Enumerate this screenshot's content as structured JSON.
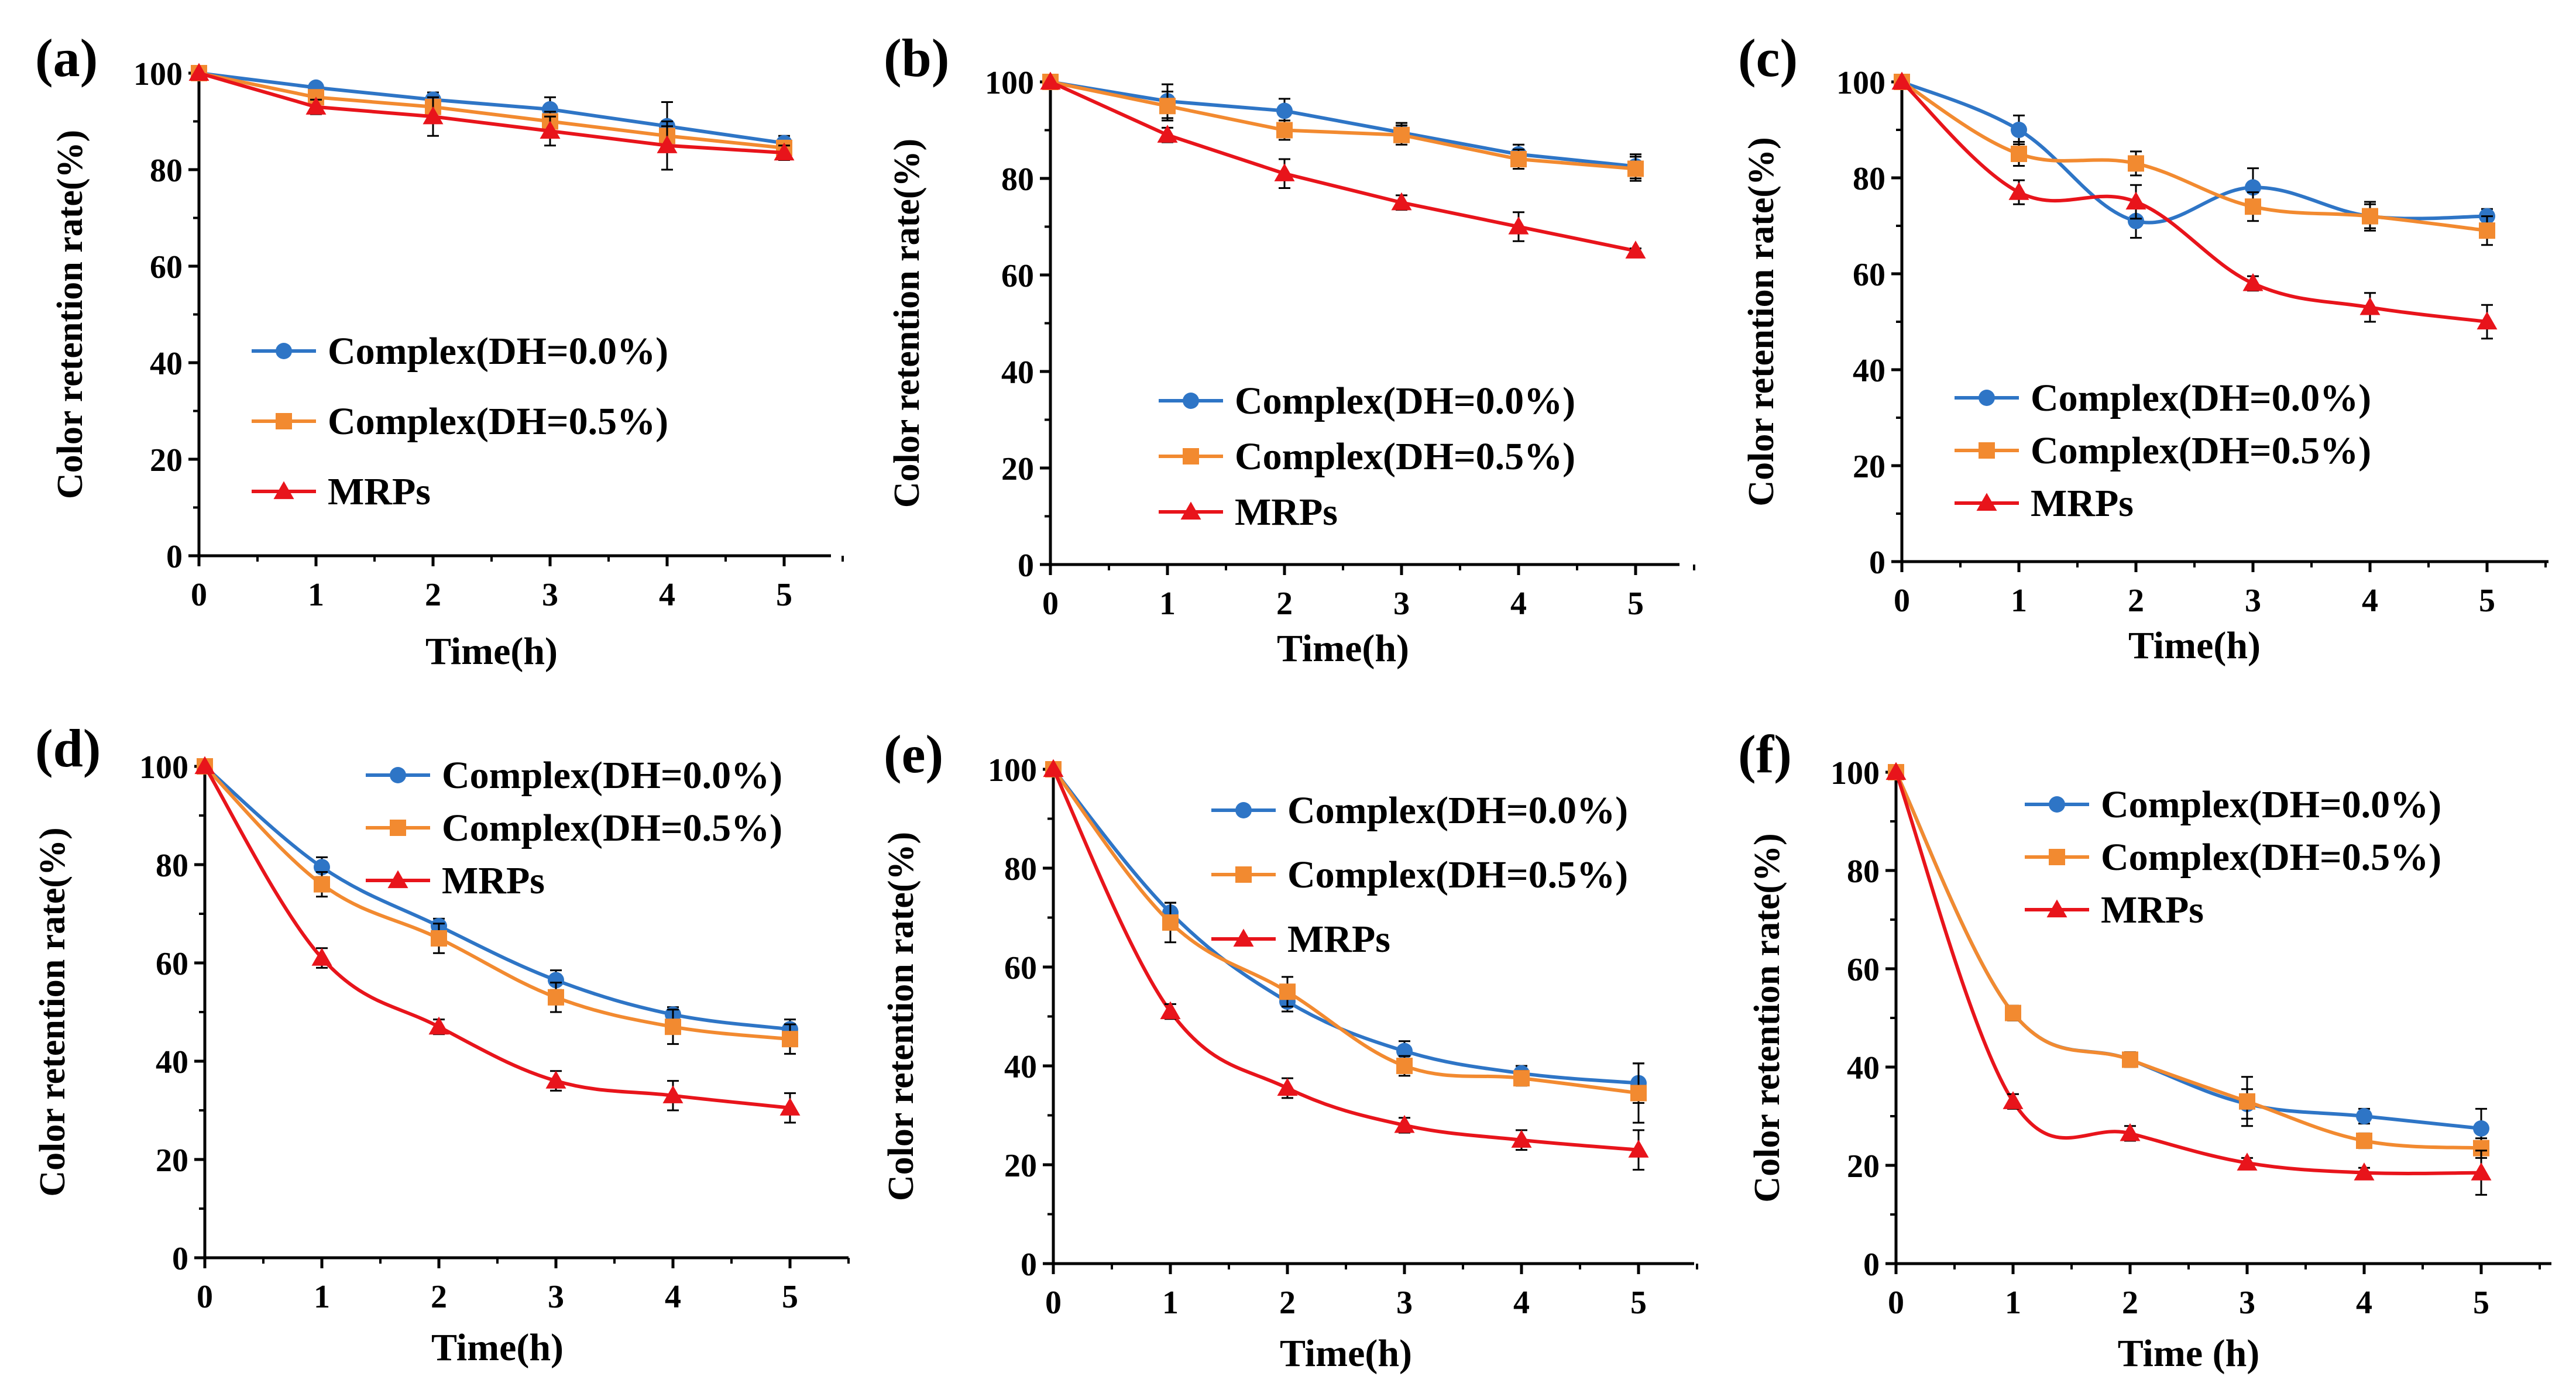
{
  "colors": {
    "complex00": "#2E75C6",
    "complex05": "#F28A30",
    "mrps": "#E8141B",
    "axis": "#000000"
  },
  "series_styles": [
    {
      "key": "complex00",
      "marker": "circle"
    },
    {
      "key": "complex05",
      "marker": "square"
    },
    {
      "key": "mrps",
      "marker": "triangle"
    }
  ],
  "chart_data": [
    {
      "type": "line",
      "panel_label": "(a)",
      "xlabel": "Time(h)",
      "ylabel": "Color retention rate(%)",
      "x": [
        0,
        1,
        2,
        3,
        4,
        5
      ],
      "xlim": [
        0,
        5.5
      ],
      "ylim": [
        0,
        100
      ],
      "xticks": [
        "0",
        "1",
        "2",
        "3",
        "4",
        "5"
      ],
      "yticks": [
        "0",
        "20",
        "40",
        "60",
        "80",
        "100"
      ],
      "smooth": false,
      "legend_position": "middle-left",
      "series": [
        {
          "name": "Complex(DH=0.0%)",
          "values": [
            100,
            97,
            94.5,
            92.5,
            89,
            85.5
          ],
          "errors": [
            0,
            1,
            1.5,
            2.5,
            5,
            1.5
          ]
        },
        {
          "name": "Complex(DH=0.5%)",
          "values": [
            100,
            95,
            93,
            90,
            87,
            84.5
          ],
          "errors": [
            0,
            1,
            1.5,
            2,
            2,
            1.5
          ]
        },
        {
          "name": "MRPs",
          "values": [
            100,
            93,
            91,
            88,
            85,
            83.5
          ],
          "errors": [
            0,
            1.5,
            4,
            3,
            5,
            1.5
          ]
        }
      ]
    },
    {
      "type": "line",
      "panel_label": "(b)",
      "xlabel": "Time(h)",
      "ylabel": "Color retention rate(%)",
      "x": [
        0,
        1,
        2,
        3,
        4,
        5
      ],
      "xlim": [
        0,
        5.5
      ],
      "ylim": [
        0,
        100
      ],
      "xticks": [
        "0",
        "1",
        "2",
        "3",
        "4",
        "5"
      ],
      "yticks": [
        "0",
        "20",
        "40",
        "60",
        "80",
        "100"
      ],
      "smooth": false,
      "legend_position": "middle-right",
      "series": [
        {
          "name": "Complex(DH=0.0%)",
          "values": [
            100,
            96,
            94,
            89.5,
            85,
            82.5
          ],
          "errors": [
            0,
            3.5,
            2.5,
            2,
            2,
            2.5
          ]
        },
        {
          "name": "Complex(DH=0.5%)",
          "values": [
            100,
            95,
            90,
            89,
            84,
            82
          ],
          "errors": [
            0,
            3,
            2,
            2,
            2,
            2.5
          ]
        },
        {
          "name": "MRPs",
          "values": [
            100,
            89,
            81,
            75,
            70,
            65
          ],
          "errors": [
            0,
            1.5,
            3,
            1.5,
            3,
            0.5
          ]
        }
      ]
    },
    {
      "type": "line",
      "panel_label": "(c)",
      "xlabel": "Time(h)",
      "ylabel": "Color retention rate(%)",
      "x": [
        0,
        1,
        2,
        3,
        4,
        5
      ],
      "xlim": [
        0,
        5.5
      ],
      "ylim": [
        0,
        100
      ],
      "xticks": [
        "0",
        "1",
        "2",
        "3",
        "4",
        "5"
      ],
      "yticks": [
        "0",
        "20",
        "40",
        "60",
        "80",
        "100"
      ],
      "smooth": true,
      "legend_position": "middle-right",
      "series": [
        {
          "name": "Complex(DH=0.0%)",
          "values": [
            100,
            90,
            71,
            78,
            72,
            72
          ],
          "errors": [
            0,
            3,
            3.5,
            4,
            3,
            1.5
          ]
        },
        {
          "name": "Complex(DH=0.5%)",
          "values": [
            100,
            85,
            83,
            74,
            72,
            69
          ],
          "errors": [
            0,
            2.5,
            2.5,
            3,
            2.5,
            3
          ]
        },
        {
          "name": "MRPs",
          "values": [
            100,
            77,
            75,
            58,
            53,
            50
          ],
          "errors": [
            0,
            2.5,
            3.5,
            1.5,
            3,
            3.5
          ]
        }
      ]
    },
    {
      "type": "line",
      "panel_label": "(d)",
      "xlabel": "Time(h)",
      "ylabel": "Color retention rate(%)",
      "x": [
        0,
        1,
        2,
        3,
        4,
        5
      ],
      "xlim": [
        0,
        5.5
      ],
      "ylim": [
        0,
        100
      ],
      "xticks": [
        "0",
        "1",
        "2",
        "3",
        "4",
        "5"
      ],
      "yticks": [
        "0",
        "20",
        "40",
        "60",
        "80",
        "100"
      ],
      "smooth": true,
      "legend_position": "top-right",
      "series": [
        {
          "name": "Complex(DH=0.0%)",
          "values": [
            100,
            79.5,
            67.5,
            56.5,
            49.5,
            46.5
          ],
          "errors": [
            0,
            2,
            1.5,
            2,
            1.5,
            2
          ]
        },
        {
          "name": "Complex(DH=0.5%)",
          "values": [
            100,
            76,
            65,
            53,
            47,
            44.5
          ],
          "errors": [
            0,
            2.5,
            3,
            3,
            3.5,
            3
          ]
        },
        {
          "name": "MRPs",
          "values": [
            100,
            61,
            47,
            36,
            33,
            30.5
          ],
          "errors": [
            0,
            2,
            1.5,
            2,
            3,
            3
          ]
        }
      ]
    },
    {
      "type": "line",
      "panel_label": "(e)",
      "xlabel": "Time(h)",
      "ylabel": "Color retention rate(%)",
      "x": [
        0,
        1,
        2,
        3,
        4,
        5
      ],
      "xlim": [
        0,
        5.5
      ],
      "ylim": [
        0,
        100
      ],
      "xticks": [
        "0",
        "1",
        "2",
        "3",
        "4",
        "5"
      ],
      "yticks": [
        "0",
        "20",
        "40",
        "60",
        "80",
        "100"
      ],
      "smooth": true,
      "legend_position": "top-right",
      "series": [
        {
          "name": "Complex(DH=0.0%)",
          "values": [
            100,
            71,
            53,
            43,
            38.5,
            36.5
          ],
          "errors": [
            0,
            2,
            2,
            2,
            1.5,
            4
          ]
        },
        {
          "name": "Complex(DH=0.5%)",
          "values": [
            100,
            69,
            55,
            40,
            37.5,
            34.5
          ],
          "errors": [
            0,
            4,
            3,
            2,
            1.5,
            6
          ]
        },
        {
          "name": "MRPs",
          "values": [
            100,
            51,
            35.5,
            28,
            25,
            23
          ],
          "errors": [
            0,
            1.5,
            2,
            1.5,
            2,
            4
          ]
        }
      ]
    },
    {
      "type": "line",
      "panel_label": "(f)",
      "xlabel": "Time (h)",
      "ylabel": "Color retention rate(%)",
      "x": [
        0,
        1,
        2,
        3,
        4,
        5
      ],
      "xlim": [
        0,
        5.5
      ],
      "ylim": [
        0,
        100
      ],
      "xticks": [
        "0",
        "1",
        "2",
        "3",
        "4",
        "5"
      ],
      "yticks": [
        "0",
        "20",
        "40",
        "60",
        "80",
        "100"
      ],
      "smooth": true,
      "legend_position": "top-right",
      "series": [
        {
          "name": "Complex(DH=0.0%)",
          "values": [
            100,
            51,
            41.5,
            32.5,
            30,
            27.5
          ],
          "errors": [
            0,
            1.5,
            1.5,
            3,
            1.5,
            4
          ]
        },
        {
          "name": "Complex(DH=0.5%)",
          "values": [
            100,
            51,
            41.5,
            33,
            25,
            23.5
          ],
          "errors": [
            0,
            1.5,
            1.5,
            5,
            1.5,
            2
          ]
        },
        {
          "name": "MRPs",
          "values": [
            100,
            33,
            26.5,
            20.5,
            18.5,
            18.5
          ],
          "errors": [
            0,
            1.5,
            1.5,
            1,
            1,
            4.5
          ]
        }
      ]
    }
  ]
}
